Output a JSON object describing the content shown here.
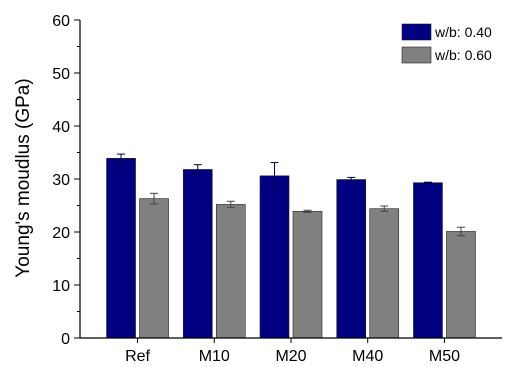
{
  "chart_data": {
    "type": "bar",
    "title": "",
    "xlabel": "",
    "ylabel": "Young's moudlus (GPa)",
    "ylim": [
      0,
      60
    ],
    "yticks": [
      0,
      10,
      20,
      30,
      40,
      50,
      60
    ],
    "grid": false,
    "legend_position": "top-right",
    "categories": [
      "Ref",
      "M10",
      "M20",
      "M40",
      "M50"
    ],
    "series": [
      {
        "name": "w/b: 0.40",
        "color": "#000080",
        "values": [
          33.9,
          31.8,
          30.6,
          29.9,
          29.3
        ],
        "errors": [
          0.8,
          0.9,
          2.5,
          0.4,
          0.1
        ]
      },
      {
        "name": "w/b: 0.60",
        "color": "#808080",
        "values": [
          26.3,
          25.2,
          23.9,
          24.4,
          20.1
        ],
        "errors": [
          1.0,
          0.6,
          0.2,
          0.5,
          0.8
        ]
      }
    ]
  }
}
